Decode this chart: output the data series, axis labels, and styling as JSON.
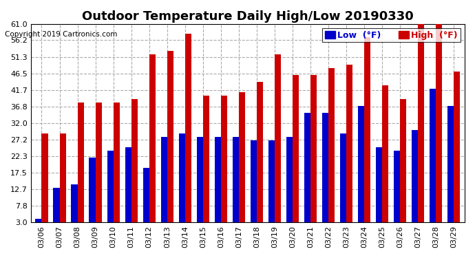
{
  "title": "Outdoor Temperature Daily High/Low 20190330",
  "copyright": "Copyright 2019 Cartronics.com",
  "legend_low": "Low  (°F)",
  "legend_high": "High  (°F)",
  "dates": [
    "03/06",
    "03/07",
    "03/08",
    "03/09",
    "03/10",
    "03/11",
    "03/12",
    "03/13",
    "03/14",
    "03/15",
    "03/16",
    "03/17",
    "03/18",
    "03/19",
    "03/20",
    "03/21",
    "03/22",
    "03/23",
    "03/24",
    "03/25",
    "03/26",
    "03/27",
    "03/28",
    "03/29"
  ],
  "high": [
    29,
    29,
    38,
    38,
    38,
    39,
    52,
    53,
    58,
    40,
    40,
    41,
    44,
    52,
    46,
    46,
    48,
    49,
    57,
    43,
    39,
    61,
    61,
    47
  ],
  "low": [
    4,
    13,
    14,
    22,
    24,
    25,
    19,
    28,
    29,
    28,
    28,
    28,
    27,
    27,
    28,
    35,
    35,
    29,
    37,
    25,
    24,
    30,
    42,
    37
  ],
  "ymin": 3.0,
  "ymax": 61.0,
  "yticks": [
    3.0,
    7.8,
    12.7,
    17.5,
    22.3,
    27.2,
    32.0,
    36.8,
    41.7,
    46.5,
    51.3,
    56.2,
    61.0
  ],
  "bar_width": 0.35,
  "low_color": "#0000cc",
  "high_color": "#cc0000",
  "bg_color": "#ffffff",
  "grid_color": "#aaaaaa",
  "title_fontsize": 13,
  "tick_fontsize": 8,
  "legend_fontsize": 9
}
